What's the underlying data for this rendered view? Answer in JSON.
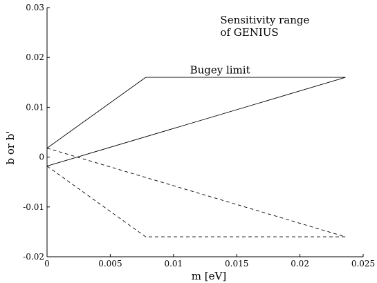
{
  "chart_data": {
    "type": "line",
    "title": "",
    "xlabel": "m [eV]",
    "ylabel": "b or b'",
    "xlim": [
      0,
      0.025
    ],
    "ylim": [
      -0.02,
      0.03
    ],
    "xticks": [
      0,
      0.005,
      0.01,
      0.015,
      0.02,
      0.025
    ],
    "xtick_labels": [
      "0",
      "0.005",
      "0.01",
      "0.015",
      "0.02",
      "0.025"
    ],
    "yticks": [
      -0.02,
      -0.01,
      0,
      0.01,
      0.02,
      0.03
    ],
    "ytick_labels": [
      "-0.02",
      "-0.01",
      "0",
      "0.01",
      "0.02",
      "0.03"
    ],
    "grid": false,
    "series": [
      {
        "style": "solid",
        "x": [
          0,
          0.0078,
          0.0236
        ],
        "y": [
          0.0018,
          0.016,
          0.016
        ]
      },
      {
        "style": "solid",
        "x": [
          0,
          0.0236
        ],
        "y": [
          -0.0018,
          0.016
        ]
      },
      {
        "style": "dashed",
        "x": [
          0,
          0.0236
        ],
        "y": [
          0.0018,
          -0.016
        ]
      },
      {
        "style": "dashed",
        "x": [
          0,
          0.0078,
          0.0236
        ],
        "y": [
          -0.0018,
          -0.016,
          -0.016
        ]
      }
    ],
    "annotations": [
      {
        "lines": [
          "Sensitivity range",
          "of GENIUS"
        ],
        "x": 0.0137,
        "y": 0.0268
      },
      {
        "lines": [
          "Bugey limit"
        ],
        "x": 0.0113,
        "y": 0.0168
      }
    ]
  }
}
